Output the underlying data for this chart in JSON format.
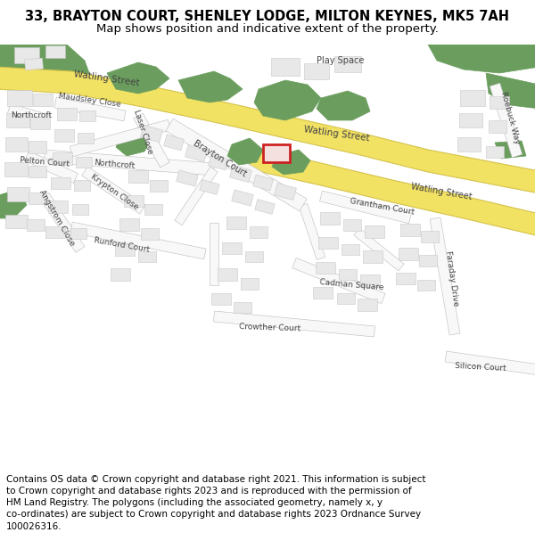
{
  "title_line1": "33, BRAYTON COURT, SHENLEY LODGE, MILTON KEYNES, MK5 7AH",
  "title_line2": "Map shows position and indicative extent of the property.",
  "copyright_text": "Contains OS data © Crown copyright and database right 2021. This information is subject\nto Crown copyright and database rights 2023 and is reproduced with the permission of\nHM Land Registry. The polygons (including the associated geometry, namely x, y\nco-ordinates) are subject to Crown copyright and database rights 2023 Ordnance Survey\n100026316.",
  "bg_color": "#ffffff",
  "map_bg": "#f7f7f5",
  "road_yellow": "#f2e264",
  "road_yellow_edge": "#d4c24a",
  "green_dark": "#6b9e5e",
  "green_medium": "#7aaa6a",
  "building_fill": "#e8e8e8",
  "building_edge": "#c8c8c8",
  "highlight_red": "#cc2222",
  "label_color": "#444444",
  "title_fontsize": 10.5,
  "subtitle_fontsize": 9.5,
  "copyright_fontsize": 7.5,
  "fig_width": 6.0,
  "fig_height": 6.25,
  "dpi": 100
}
